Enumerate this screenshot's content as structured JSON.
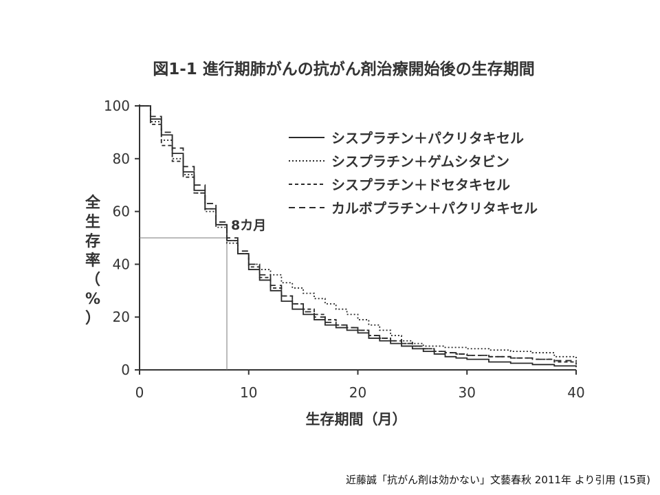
{
  "chart_data": {
    "type": "line",
    "title": "図1-1 進行期肺がんの抗がん剤治療開始後の生存期間",
    "xlabel": "生存期間（月）",
    "ylabel": "全生存率（%）",
    "xlim": [
      0,
      40
    ],
    "ylim": [
      0,
      100
    ],
    "xticks": [
      0,
      10,
      20,
      30,
      40
    ],
    "yticks": [
      0,
      20,
      40,
      60,
      80,
      100
    ],
    "legend_position": "top-right",
    "annotation": {
      "label": "8カ月",
      "x": 8,
      "y": 50
    },
    "series": [
      {
        "name": "シスプラチン＋パクリタキセル",
        "dash": "solid",
        "x": [
          0,
          1,
          2,
          3,
          4,
          5,
          6,
          7,
          8,
          9,
          10,
          11,
          12,
          13,
          14,
          15,
          16,
          17,
          18,
          19,
          20,
          21,
          22,
          23,
          24,
          25,
          26,
          27,
          28,
          29,
          30,
          32,
          34,
          36,
          38,
          40
        ],
        "y": [
          100,
          95,
          89,
          82,
          75,
          68,
          61,
          55,
          49,
          44,
          38,
          34,
          30,
          26,
          23,
          21,
          19,
          17,
          16,
          15,
          14,
          12,
          11,
          10,
          9,
          8,
          7,
          6,
          5,
          4.5,
          4,
          3,
          2.5,
          2,
          1.5,
          1
        ]
      },
      {
        "name": "シスプラチン＋ゲムシタビン",
        "dash": "dotted",
        "x": [
          0,
          1,
          2,
          3,
          4,
          5,
          6,
          7,
          8,
          9,
          10,
          11,
          12,
          13,
          14,
          15,
          16,
          17,
          18,
          19,
          20,
          21,
          22,
          23,
          24,
          25,
          26,
          28,
          30,
          32,
          34,
          36,
          38,
          40
        ],
        "y": [
          100,
          94,
          87,
          80,
          74,
          67,
          60,
          54,
          48,
          44,
          40,
          38,
          36,
          33,
          31,
          29,
          27,
          25,
          23,
          21,
          19,
          17,
          15,
          13,
          11,
          10,
          9,
          8.5,
          8,
          7.5,
          7,
          6.5,
          5,
          4
        ]
      },
      {
        "name": "シスプラチン＋ドセタキセル",
        "dash": "dashed-short",
        "x": [
          0,
          1,
          2,
          3,
          4,
          5,
          6,
          7,
          8,
          9,
          10,
          11,
          12,
          13,
          14,
          15,
          16,
          17,
          18,
          19,
          20,
          21,
          22,
          23,
          24,
          25,
          26,
          27,
          28,
          29,
          30,
          32,
          34,
          36,
          38,
          40
        ],
        "y": [
          100,
          93,
          85,
          79,
          73,
          67,
          61,
          55,
          49,
          44,
          39,
          35,
          31,
          28,
          25,
          23,
          21,
          19,
          17,
          16,
          15,
          13,
          12,
          11,
          10,
          9,
          8,
          7,
          6.5,
          6,
          5.5,
          5,
          4.5,
          4,
          3,
          2
        ]
      },
      {
        "name": "カルボプラチン＋パクリタキセル",
        "dash": "dashed-long",
        "x": [
          0,
          1,
          2,
          3,
          4,
          5,
          6,
          7,
          8,
          9,
          10,
          11,
          12,
          13,
          14,
          15,
          16,
          17,
          18,
          19,
          20,
          21,
          22,
          23,
          24,
          25,
          26,
          27,
          28,
          29,
          30,
          32,
          34,
          36,
          38,
          40
        ],
        "y": [
          100,
          96,
          90,
          84,
          77,
          70,
          63,
          56,
          50,
          45,
          40,
          36,
          32,
          28,
          25,
          22,
          20,
          18,
          17,
          16,
          15,
          13,
          12,
          11,
          10,
          9,
          8,
          7,
          6.5,
          6,
          5.5,
          5,
          4.5,
          4,
          3.5,
          3
        ]
      }
    ]
  },
  "citation": "近藤誠「抗がん剤は効かない」文藝春秋 2011年 より引用 (15頁)"
}
